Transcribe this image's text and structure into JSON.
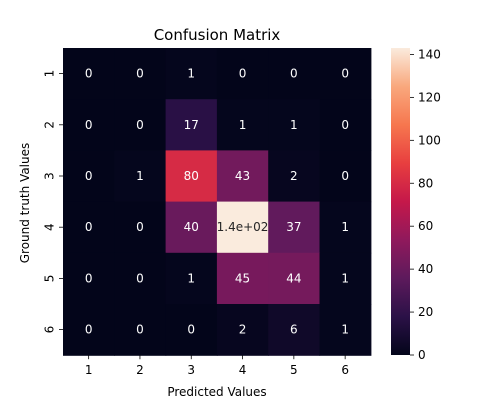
{
  "chart_data": {
    "type": "heatmap",
    "title": "Confusion Matrix",
    "xlabel": "Predicted Values",
    "ylabel": "Ground truth Values",
    "x_categories": [
      "1",
      "2",
      "3",
      "4",
      "5",
      "6"
    ],
    "y_categories": [
      "1",
      "2",
      "3",
      "4",
      "5",
      "6"
    ],
    "values": [
      [
        0,
        0,
        1,
        0,
        0,
        0
      ],
      [
        0,
        0,
        17,
        1,
        1,
        0
      ],
      [
        0,
        1,
        80,
        43,
        2,
        0
      ],
      [
        0,
        0,
        40,
        143,
        37,
        1
      ],
      [
        0,
        0,
        1,
        45,
        44,
        1
      ],
      [
        0,
        0,
        0,
        2,
        6,
        1
      ]
    ],
    "cell_labels": [
      [
        "0",
        "0",
        "1",
        "0",
        "0",
        "0"
      ],
      [
        "0",
        "0",
        "17",
        "1",
        "1",
        "0"
      ],
      [
        "0",
        "1",
        "80",
        "43",
        "2",
        "0"
      ],
      [
        "0",
        "0",
        "40",
        "1.4e+02",
        "37",
        "1"
      ],
      [
        "0",
        "0",
        "1",
        "45",
        "44",
        "1"
      ],
      [
        "0",
        "0",
        "0",
        "2",
        "6",
        "1"
      ]
    ],
    "color_range": [
      0,
      143
    ],
    "colorbar_ticks": [
      "0",
      "20",
      "40",
      "60",
      "80",
      "100",
      "120",
      "140"
    ],
    "colorbar_tick_values": [
      0,
      20,
      40,
      60,
      80,
      100,
      120,
      140
    ],
    "colormap_stops": [
      "#03051a",
      "#2b1147",
      "#5d1a5c",
      "#90195c",
      "#c5184a",
      "#e83f3f",
      "#f6774f",
      "#f9a87d",
      "#faebdd"
    ]
  }
}
